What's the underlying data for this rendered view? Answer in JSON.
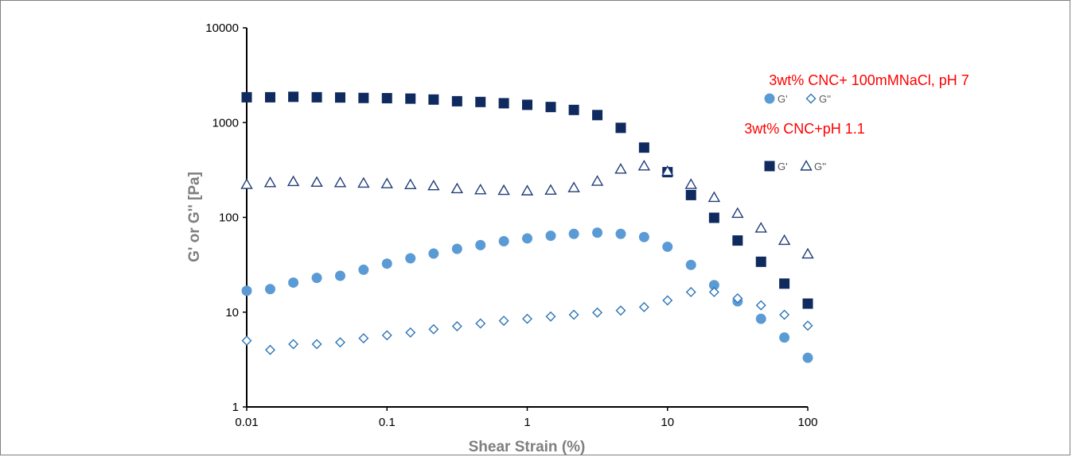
{
  "chart_data": {
    "type": "scatter",
    "title": "",
    "xlabel": "Shear Strain (%)",
    "ylabel": "G' or G'' [Pa]",
    "xscale": "log",
    "yscale": "log",
    "xlim": [
      0.01,
      100
    ],
    "ylim": [
      1,
      10000
    ],
    "xticks": [
      "0.01",
      "0.1",
      "1",
      "10",
      "100"
    ],
    "yticks": [
      "1",
      "10",
      "100",
      "1000",
      "10000"
    ],
    "grid": false,
    "legend_groups": [
      {
        "title": "3wt% CNC+ 100mMNaCl, pH 7",
        "entries": [
          {
            "label": "G'",
            "series": 0
          },
          {
            "label": "G''",
            "series": 1
          }
        ]
      },
      {
        "title": "3wt% CNC+pH 1.1",
        "entries": [
          {
            "label": "G'",
            "series": 2
          },
          {
            "label": "G''",
            "series": 3
          }
        ]
      }
    ],
    "series": [
      {
        "name": "G'",
        "marker": "circle",
        "color": "#5b9bd5",
        "fill": true,
        "x": [
          0.01,
          0.0147,
          0.0215,
          0.0316,
          0.0464,
          0.0681,
          0.1,
          0.147,
          0.215,
          0.316,
          0.464,
          0.681,
          1,
          1.47,
          2.15,
          3.16,
          4.64,
          6.81,
          10,
          14.7,
          21.5,
          31.6,
          46.4,
          68.1,
          100
        ],
        "y": [
          16.8,
          17.5,
          20.5,
          23,
          24.2,
          28,
          32.5,
          37,
          41.5,
          46.5,
          51,
          56,
          60,
          64,
          67,
          69,
          67,
          62,
          49,
          31.5,
          19.3,
          13,
          8.5,
          5.4,
          3.3
        ]
      },
      {
        "name": "G''",
        "marker": "diamond",
        "color": "#2e75b6",
        "fill": false,
        "x": [
          0.01,
          0.0147,
          0.0215,
          0.0316,
          0.0464,
          0.0681,
          0.1,
          0.147,
          0.215,
          0.316,
          0.464,
          0.681,
          1,
          1.47,
          2.15,
          3.16,
          4.64,
          6.81,
          10,
          14.7,
          21.5,
          31.6,
          46.4,
          68.1,
          100
        ],
        "y": [
          5,
          4,
          4.6,
          4.6,
          4.8,
          5.3,
          5.7,
          6.1,
          6.6,
          7.1,
          7.6,
          8.1,
          8.5,
          9,
          9.4,
          9.9,
          10.4,
          11.3,
          13.3,
          16.3,
          16.3,
          14,
          11.8,
          9.4,
          7.2
        ]
      },
      {
        "name": "G'",
        "marker": "square",
        "color": "#0f2a5e",
        "fill": true,
        "x": [
          0.01,
          0.0147,
          0.0215,
          0.0316,
          0.0464,
          0.0681,
          0.1,
          0.147,
          0.215,
          0.316,
          0.464,
          0.681,
          1,
          1.47,
          2.15,
          3.16,
          4.64,
          6.81,
          10,
          14.7,
          21.5,
          31.6,
          46.4,
          68.1,
          100
        ],
        "y": [
          1850,
          1850,
          1870,
          1850,
          1840,
          1820,
          1810,
          1790,
          1750,
          1680,
          1650,
          1600,
          1540,
          1460,
          1360,
          1200,
          880,
          545,
          300,
          172,
          99,
          57,
          34,
          20,
          12.3
        ]
      },
      {
        "name": "G''",
        "marker": "triangle",
        "color": "#1f3d7a",
        "fill": false,
        "x": [
          0.01,
          0.0147,
          0.0215,
          0.0316,
          0.0464,
          0.0681,
          0.1,
          0.147,
          0.215,
          0.316,
          0.464,
          0.681,
          1,
          1.47,
          2.15,
          3.16,
          4.64,
          6.81,
          10,
          14.7,
          21.5,
          31.6,
          46.4,
          68.1,
          100
        ],
        "y": [
          222,
          232,
          238,
          234,
          232,
          229,
          226,
          221,
          215,
          200,
          195,
          192,
          190,
          193,
          205,
          240,
          322,
          348,
          305,
          222,
          162,
          110,
          77,
          57,
          41
        ]
      }
    ]
  }
}
